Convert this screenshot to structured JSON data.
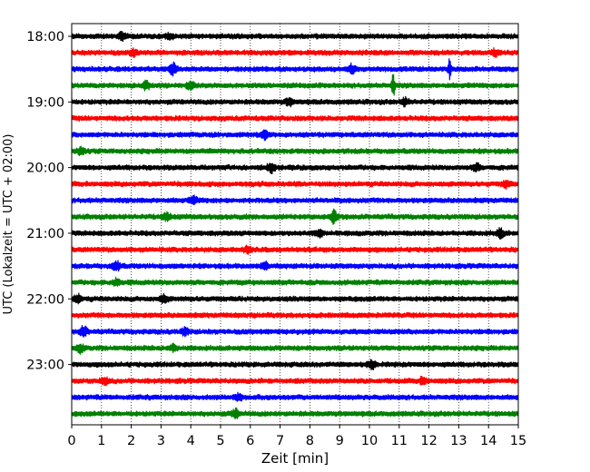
{
  "chart_data": {
    "type": "line",
    "subtype": "helicorder",
    "title": "",
    "xlabel": "Zeit  [min]",
    "ylabel": "UTC (Lokalzeit = UTC + 02:00)",
    "xlim": [
      0,
      15
    ],
    "x_ticks": [
      "0",
      "1",
      "2",
      "3",
      "4",
      "5",
      "6",
      "7",
      "8",
      "9",
      "10",
      "11",
      "12",
      "13",
      "14",
      "15"
    ],
    "y_ticks": [
      {
        "row": 0,
        "label": "18:00"
      },
      {
        "row": 4,
        "label": "19:00"
      },
      {
        "row": 8,
        "label": "20:00"
      },
      {
        "row": 12,
        "label": "21:00"
      },
      {
        "row": 16,
        "label": "22:00"
      },
      {
        "row": 20,
        "label": "23:00"
      }
    ],
    "grid": "vertical-dotted",
    "trace_count": 24,
    "trace_colors": [
      "#000000",
      "#ff0000",
      "#0000ff",
      "#008000"
    ],
    "bursts": [
      {
        "trace": 0,
        "minute": 1.7,
        "amp": 1.6
      },
      {
        "trace": 0,
        "minute": 3.3,
        "amp": 1.3
      },
      {
        "trace": 1,
        "minute": 2.1,
        "amp": 1.3
      },
      {
        "trace": 1,
        "minute": 14.2,
        "amp": 1.4
      },
      {
        "trace": 2,
        "minute": 3.4,
        "amp": 2.2
      },
      {
        "trace": 2,
        "minute": 9.4,
        "amp": 2.0
      },
      {
        "trace": 2,
        "minute": 12.7,
        "amp": 4.5
      },
      {
        "trace": 3,
        "minute": 2.5,
        "amp": 1.6
      },
      {
        "trace": 3,
        "minute": 4.0,
        "amp": 1.7
      },
      {
        "trace": 3,
        "minute": 10.8,
        "amp": 5.5
      },
      {
        "trace": 4,
        "minute": 7.3,
        "amp": 1.5
      },
      {
        "trace": 4,
        "minute": 11.2,
        "amp": 1.4
      },
      {
        "trace": 6,
        "minute": 6.5,
        "amp": 1.6
      },
      {
        "trace": 7,
        "minute": 0.3,
        "amp": 1.5
      },
      {
        "trace": 8,
        "minute": 6.7,
        "amp": 1.9
      },
      {
        "trace": 8,
        "minute": 13.6,
        "amp": 1.4
      },
      {
        "trace": 9,
        "minute": 14.6,
        "amp": 1.3
      },
      {
        "trace": 10,
        "minute": 4.1,
        "amp": 1.4
      },
      {
        "trace": 11,
        "minute": 3.2,
        "amp": 1.5
      },
      {
        "trace": 11,
        "minute": 8.8,
        "amp": 2.6
      },
      {
        "trace": 12,
        "minute": 8.3,
        "amp": 1.4
      },
      {
        "trace": 12,
        "minute": 14.4,
        "amp": 1.8
      },
      {
        "trace": 13,
        "minute": 5.9,
        "amp": 1.4
      },
      {
        "trace": 14,
        "minute": 1.5,
        "amp": 1.9
      },
      {
        "trace": 14,
        "minute": 6.5,
        "amp": 1.6
      },
      {
        "trace": 15,
        "minute": 1.5,
        "amp": 1.4
      },
      {
        "trace": 16,
        "minute": 0.2,
        "amp": 1.6
      },
      {
        "trace": 16,
        "minute": 3.1,
        "amp": 1.5
      },
      {
        "trace": 18,
        "minute": 0.4,
        "amp": 2.0
      },
      {
        "trace": 18,
        "minute": 3.8,
        "amp": 1.4
      },
      {
        "trace": 19,
        "minute": 0.3,
        "amp": 1.6
      },
      {
        "trace": 19,
        "minute": 3.4,
        "amp": 1.3
      },
      {
        "trace": 20,
        "minute": 10.1,
        "amp": 1.6
      },
      {
        "trace": 21,
        "minute": 1.1,
        "amp": 1.5
      },
      {
        "trace": 21,
        "minute": 11.8,
        "amp": 1.3
      },
      {
        "trace": 22,
        "minute": 5.6,
        "amp": 1.4
      },
      {
        "trace": 23,
        "minute": 5.5,
        "amp": 1.8
      }
    ]
  }
}
